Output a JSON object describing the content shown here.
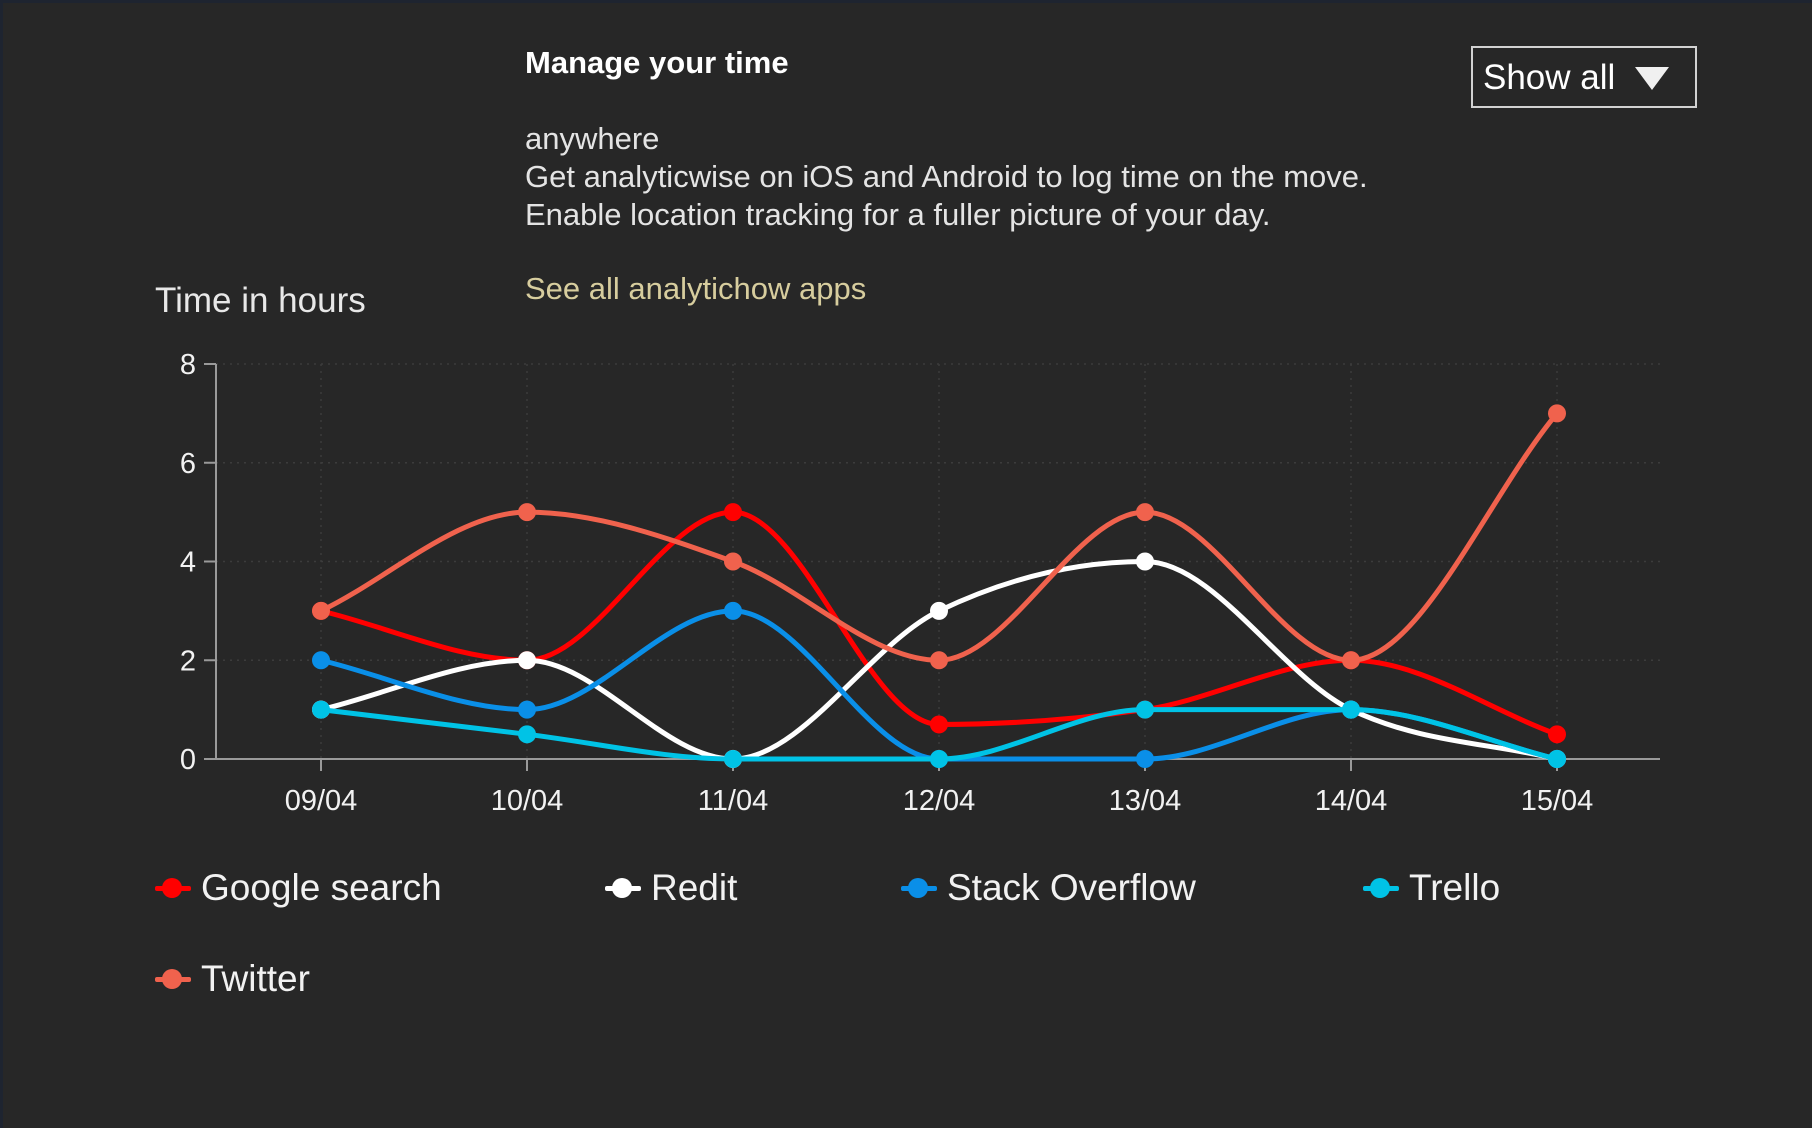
{
  "promo": {
    "title": "Manage your time",
    "lines": [
      "anywhere",
      "Get analyticwise on iOS and Android to log time on the move.",
      "Enable location tracking for a fuller picture of your day."
    ],
    "link": "See all analytichow apps"
  },
  "filter": {
    "selected": "Show all",
    "icon": "chevron-down-icon"
  },
  "chart_data": {
    "type": "line",
    "smooth": true,
    "title": "",
    "ylabel": "Time in hours",
    "xlabel": "",
    "categories": [
      "09/04",
      "10/04",
      "11/04",
      "12/04",
      "13/04",
      "14/04",
      "15/04"
    ],
    "ylim": [
      0,
      8
    ],
    "yticks": [
      "0",
      "2",
      "4",
      "6",
      "8"
    ],
    "grid": "dotted",
    "legend_position": "bottom",
    "series": [
      {
        "name": "Google search",
        "color": "#ff0000",
        "values": [
          3,
          2,
          5,
          0.7,
          1,
          2,
          0.5
        ]
      },
      {
        "name": "Redit",
        "color": "#ffffff",
        "values": [
          1,
          2,
          0,
          3,
          4,
          1,
          0
        ]
      },
      {
        "name": "Stack Overflow",
        "color": "#0a8fe8",
        "values": [
          2,
          1,
          3,
          0,
          0,
          1,
          0
        ]
      },
      {
        "name": "Trello",
        "color": "#00c3e6",
        "values": [
          1,
          0.5,
          0,
          0,
          1,
          1,
          0
        ]
      },
      {
        "name": "Twitter",
        "color": "#f0624d",
        "values": [
          3,
          5,
          4,
          2,
          5,
          2,
          7
        ]
      }
    ]
  }
}
